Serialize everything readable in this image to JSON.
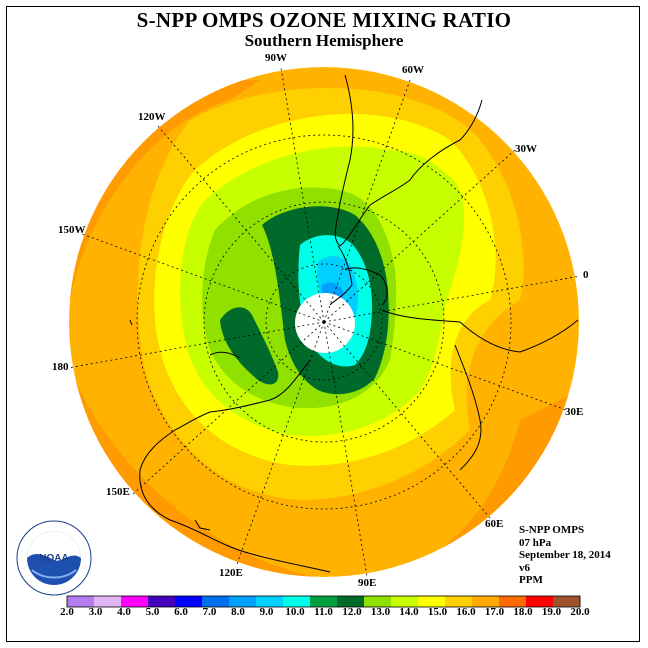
{
  "title": "S-NPP OMPS OZONE MIXING RATIO",
  "subtitle": "Southern Hemisphere",
  "longitude_labels": {
    "lon_90w": "90W",
    "lon_60w": "60W",
    "lon_30w": "30W",
    "lon_120w": "120W",
    "lon_150w": "150W",
    "lon_0": "0",
    "lon_180": "180",
    "lon_30e": "30E",
    "lon_150e": "150E",
    "lon_60e": "60E",
    "lon_120e": "120E",
    "lon_90e": "90E"
  },
  "info": {
    "instrument": "S-NPP OMPS",
    "level": "07 hPa",
    "date": "September 18, 2014",
    "version": "v6",
    "units": "PPM"
  },
  "logo_text": "NOAA",
  "colorbar": {
    "labels": [
      "2.0",
      "3.0",
      "4.0",
      "5.0",
      "6.0",
      "7.0",
      "8.0",
      "9.0",
      "10.0",
      "11.0",
      "12.0",
      "13.0",
      "14.0",
      "15.0",
      "16.0",
      "17.0",
      "18.0",
      "19.0",
      "20.0"
    ],
    "colors": [
      "#b57cf0",
      "#dfb6f3",
      "#ff00ff",
      "#4400bf",
      "#0000ff",
      "#0070f0",
      "#00a0ff",
      "#00d0ff",
      "#00ffe8",
      "#00a040",
      "#006a2a",
      "#90e000",
      "#c8ff00",
      "#ffff00",
      "#ffd000",
      "#ffaa00",
      "#ff6a00",
      "#ff0000",
      "#a0522d"
    ]
  }
}
